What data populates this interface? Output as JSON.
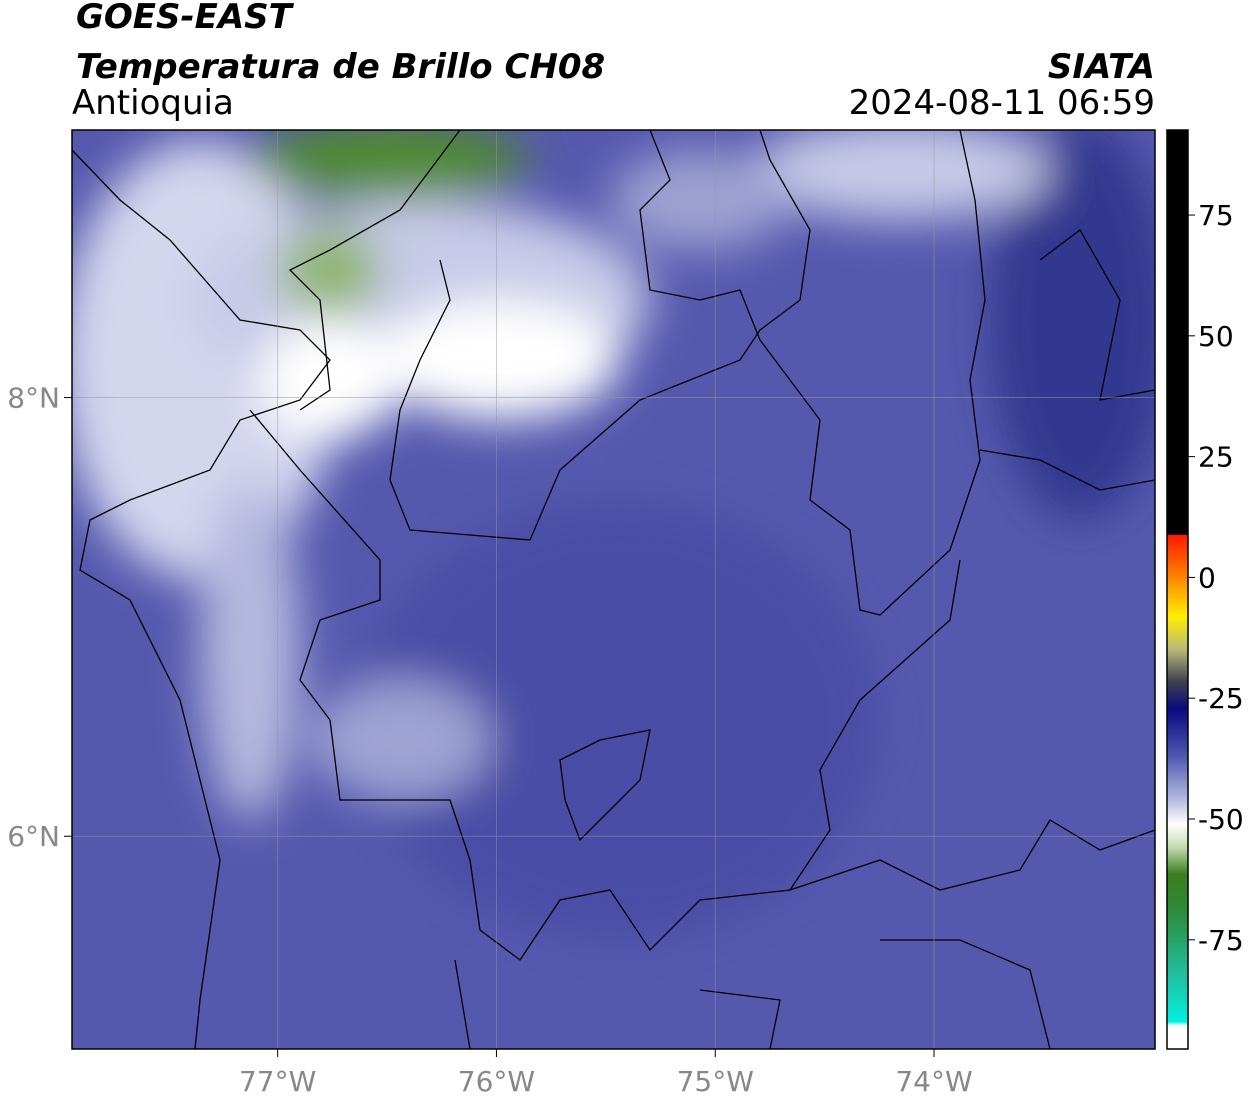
{
  "header": {
    "title": "GOES-EAST",
    "subtitle": "Temperatura de Brillo CH08",
    "region": "Antioquia",
    "agency": "SIATA",
    "datetime": "2024-08-11 06:59"
  },
  "map": {
    "xlim": [
      -77.94,
      -72.99
    ],
    "ylim": [
      5.03,
      9.22
    ],
    "xticks": [
      {
        "value": -77,
        "label": "77°W"
      },
      {
        "value": -76,
        "label": "76°W"
      },
      {
        "value": -75,
        "label": "75°W"
      },
      {
        "value": -74,
        "label": "74°W"
      }
    ],
    "yticks": [
      {
        "value": 8,
        "label": "8°N"
      },
      {
        "value": 6,
        "label": "6°N"
      }
    ],
    "grid": true
  },
  "colorbar": {
    "lim": [
      -97.6,
      92.6
    ],
    "ticks": [
      75,
      50,
      25,
      0,
      -25,
      -50,
      -75
    ]
  }
}
